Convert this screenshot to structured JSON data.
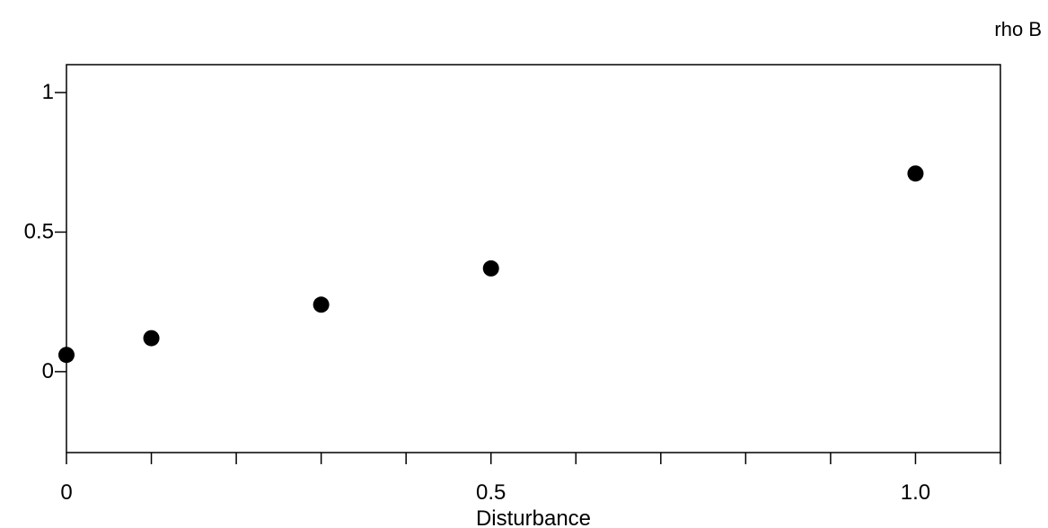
{
  "chart_data": {
    "type": "scatter",
    "title": "",
    "xlabel": "Disturbance",
    "ylabel": "rho B",
    "xlim": [
      0,
      1.1
    ],
    "ylim": [
      -0.29,
      1.1
    ],
    "x_ticks": [
      0,
      0.1,
      0.2,
      0.3,
      0.4,
      0.5,
      0.6,
      0.7,
      0.8,
      0.9,
      1.0,
      1.1
    ],
    "x_tick_labels": [
      {
        "value": 0,
        "label": "0"
      },
      {
        "value": 0.5,
        "label": "0.5"
      },
      {
        "value": 1.0,
        "label": "1.0"
      }
    ],
    "y_tick_labels": [
      {
        "value": 0,
        "label": "0"
      },
      {
        "value": 0.5,
        "label": "0.5"
      },
      {
        "value": 1,
        "label": "1"
      }
    ],
    "grid": false,
    "legend": "none",
    "marker_color": "#000000",
    "series": [
      {
        "x": [
          0,
          0.1,
          0.3,
          0.5,
          1.0
        ],
        "y": [
          0.06,
          0.12,
          0.24,
          0.37,
          0.71
        ]
      }
    ]
  }
}
